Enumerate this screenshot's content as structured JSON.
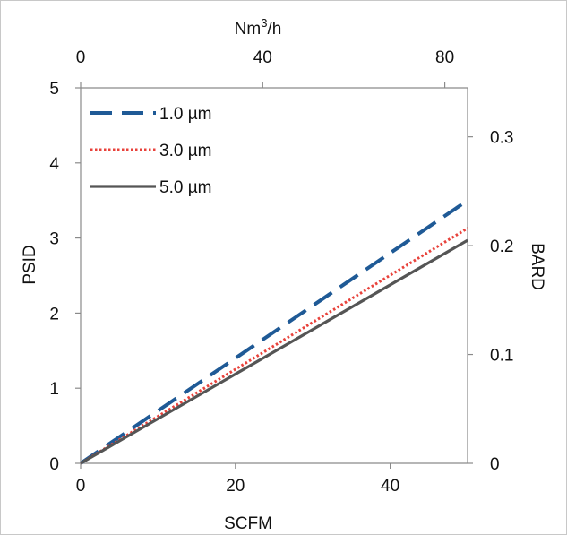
{
  "chart_data": {
    "type": "line",
    "xlabel": "SCFM",
    "ylabel": "PSID",
    "y2label": "BARD",
    "x2label": "Nm³/h",
    "x2label_parts": {
      "base": "Nm",
      "sup": "3",
      "tail": "/h"
    },
    "xlim": [
      0,
      50
    ],
    "ylim": [
      0,
      5
    ],
    "x_ticks": [
      0,
      20,
      40
    ],
    "y_ticks": [
      0,
      1,
      2,
      3,
      4,
      5
    ],
    "x2lim": [
      0,
      85
    ],
    "x2_ticks": [
      0,
      40,
      80
    ],
    "y2lim": [
      0,
      0.345
    ],
    "y2_ticks": [
      0,
      0.1,
      0.2,
      0.3
    ],
    "y2_tick_labels": [
      "0",
      "0.1",
      "0.2",
      "0.3"
    ],
    "grid": false,
    "legend_position": "top-left",
    "series": [
      {
        "name": "1.0 µm",
        "x": [
          0,
          50
        ],
        "y": [
          0,
          3.5
        ],
        "color": "#1f5a96",
        "style": "dashed"
      },
      {
        "name": "3.0 µm",
        "x": [
          0,
          50
        ],
        "y": [
          0,
          3.13
        ],
        "color": "#e8423b",
        "style": "dotted"
      },
      {
        "name": "5.0 µm",
        "x": [
          0,
          50
        ],
        "y": [
          0,
          2.97
        ],
        "color": "#555555",
        "style": "solid"
      }
    ]
  }
}
